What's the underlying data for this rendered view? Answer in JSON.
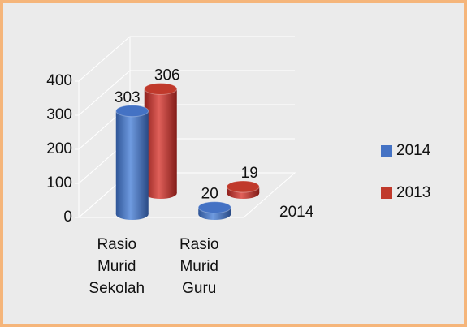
{
  "chart_data": {
    "type": "bar3d",
    "categories": [
      "Rasio Murid Sekolah",
      "Rasio Murid Guru"
    ],
    "series": [
      {
        "name": "2014",
        "color": "#4472c4",
        "values": [
          303,
          20
        ]
      },
      {
        "name": "2013",
        "color": "#c0392b",
        "values": [
          306,
          19
        ]
      }
    ],
    "depth_labels": [
      "2014"
    ],
    "ylim": [
      0,
      400
    ],
    "yticks": [
      0,
      100,
      200,
      300,
      400
    ],
    "grid": true,
    "legend": "right"
  }
}
